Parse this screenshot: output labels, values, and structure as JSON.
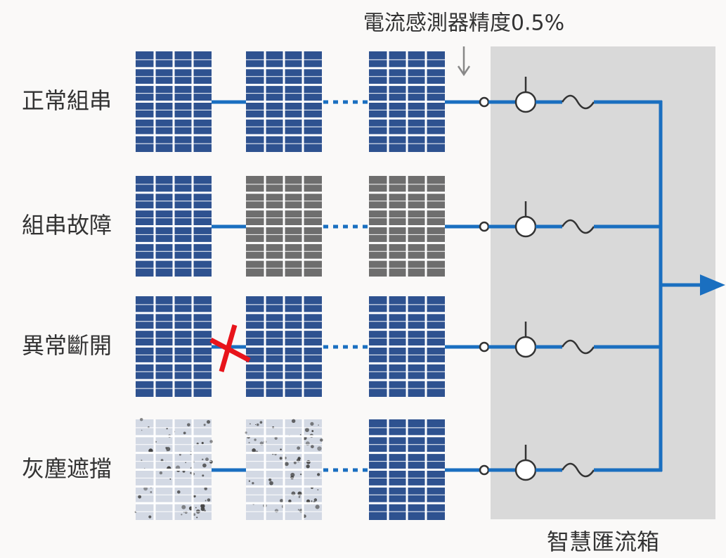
{
  "sensor_label": "電流感測器精度0.5%",
  "rows": [
    {
      "label": "正常組串"
    },
    {
      "label": "組串故障"
    },
    {
      "label": "異常斷開"
    },
    {
      "label": "灰塵遮擋"
    }
  ],
  "box_label": "智慧匯流箱"
}
